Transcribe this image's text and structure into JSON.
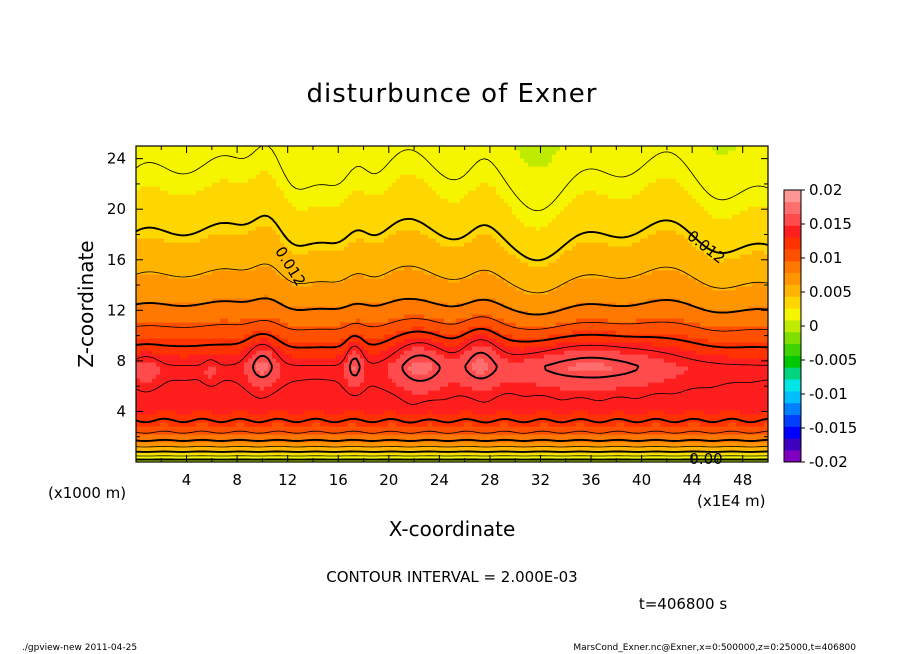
{
  "chart_data": {
    "type": "heatmap",
    "title": "disturbunce of Exner",
    "xlabel": "X-coordinate",
    "ylabel": "Z-coordinate",
    "x_unit": "(x1E4 m)",
    "y_unit": "(x1000 m)",
    "xlim": [
      0,
      50
    ],
    "ylim": [
      0,
      25
    ],
    "xticks": [
      "4",
      "8",
      "12",
      "16",
      "20",
      "24",
      "28",
      "32",
      "36",
      "40",
      "44",
      "48"
    ],
    "yticks": [
      "4",
      "8",
      "12",
      "16",
      "20",
      "24"
    ],
    "contour_interval_text": "CONTOUR INTERVAL = 2.000E-03",
    "time_text": "t=406800 s",
    "contour_labels": [
      "0.012",
      "0.012",
      "0.00"
    ],
    "colorbar": {
      "labels": [
        "0.02",
        "0.015",
        "0.01",
        "0.005",
        "0",
        "-0.005",
        "-0.01",
        "-0.015",
        "-0.02"
      ],
      "min": -0.02,
      "max": 0.02,
      "colors": [
        "#7f00bf",
        "#3f00bf",
        "#0000ff",
        "#003fff",
        "#007fff",
        "#00bfff",
        "#00e5e5",
        "#00d47f",
        "#00c800",
        "#3fd400",
        "#7fe000",
        "#bfeb00",
        "#f5f500",
        "#ffd700",
        "#ffb400",
        "#ff9600",
        "#ff7800",
        "#ff5000",
        "#ff3200",
        "#ff1e1e",
        "#ff4b4b",
        "#ff6e6e",
        "#ff9696"
      ]
    },
    "levels": [
      -0.002,
      0,
      0.002,
      0.004,
      0.006,
      0.008,
      0.01,
      0.012,
      0.014,
      0.016,
      0.018
    ]
  },
  "footer": {
    "left": "./gpview-new   2011-04-25",
    "right": "MarsCond_Exner.nc@Exner,x=0:500000,z=0:25000,t=406800"
  }
}
